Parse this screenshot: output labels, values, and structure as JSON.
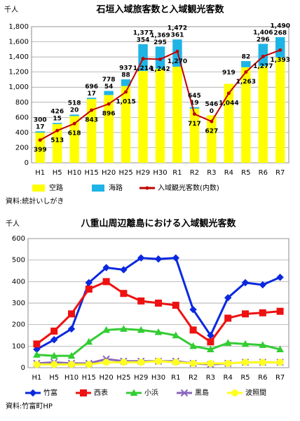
{
  "chart_data": [
    {
      "type": "bar",
      "title": "石垣入域旅客数と入域観光客数",
      "unit": "千人",
      "source": "資料:統計いしがき",
      "categories": [
        "H1",
        "H5",
        "H10",
        "H15",
        "H20",
        "H25",
        "H29",
        "H30",
        "R1",
        "R2",
        "R3",
        "R4",
        "R5",
        "R6",
        "R7"
      ],
      "ylim": [
        0,
        1800
      ],
      "yticks": [
        0,
        200,
        400,
        600,
        800,
        {
          "value": 1000,
          "label": "1,000"
        },
        {
          "value": 1200,
          "label": "1,200"
        },
        {
          "value": 1400,
          "label": "1,400"
        },
        {
          "value": 1600,
          "label": "1,600"
        },
        {
          "value": 1800,
          "label": "1,800"
        }
      ],
      "grid": true,
      "series": [
        {
          "name": "空路",
          "color": "#ffff00",
          "values": [
            399,
            513,
            618,
            843,
            896,
            1015,
            1214,
            1242,
            1270,
            717,
            627,
            1044,
            1263,
            1277,
            1393
          ],
          "value_labels": [
            "399",
            "513",
            "618",
            "843",
            "896",
            "1,015",
            "1,214",
            "1,242",
            "1,270",
            "717",
            "627",
            "1,044",
            "1,263",
            "1,277",
            "1,393"
          ]
        },
        {
          "name": "海路",
          "color": "#1fb4e6",
          "values": [
            17,
            15,
            20,
            17,
            54,
            88,
            354,
            295,
            361,
            19,
            0,
            null,
            82,
            296,
            268
          ]
        },
        {
          "name": "入域観光客数(内数)",
          "color": "#c00000",
          "line": true,
          "values": [
            300,
            426,
            518,
            696,
            778,
            937,
            1377,
            1369,
            1472,
            645,
            546,
            919,
            1200,
            1406,
            1490
          ],
          "value_labels": [
            "300",
            "426",
            "518",
            "696",
            "778",
            "937",
            "1,377",
            "1,369",
            "1,472",
            "645",
            "546",
            "919",
            null,
            "1,406",
            "1,490"
          ]
        }
      ]
    },
    {
      "type": "line",
      "title": "八重山周辺離島における入域観光客数",
      "unit": "千人",
      "source": "資料:竹富町HP",
      "categories": [
        "H1",
        "H5",
        "H10",
        "H15",
        "H20",
        "H25",
        "H29",
        "H30",
        "R1",
        "R2",
        "R3",
        "R4",
        "R5",
        "R6",
        "R7"
      ],
      "ylim": [
        0,
        600
      ],
      "yticks": [
        0,
        100,
        200,
        300,
        400,
        500,
        600
      ],
      "grid": true,
      "series": [
        {
          "name": "竹富",
          "color": "#0a28e0",
          "marker": "diamond",
          "values": [
            85,
            130,
            180,
            395,
            465,
            455,
            510,
            505,
            510,
            270,
            150,
            325,
            395,
            385,
            420
          ]
        },
        {
          "name": "西表",
          "color": "#ee1111",
          "marker": "square",
          "values": [
            110,
            170,
            250,
            365,
            400,
            345,
            310,
            300,
            290,
            175,
            120,
            230,
            250,
            255,
            262
          ]
        },
        {
          "name": "小浜",
          "color": "#33cc33",
          "marker": "triangle",
          "values": [
            60,
            55,
            55,
            120,
            175,
            180,
            175,
            165,
            150,
            100,
            85,
            115,
            110,
            105,
            85
          ]
        },
        {
          "name": "黒島",
          "color": "#8866bb",
          "marker": "x",
          "values": [
            20,
            25,
            20,
            20,
            40,
            30,
            30,
            30,
            30,
            20,
            15,
            20,
            25,
            25,
            25
          ]
        },
        {
          "name": "波照間",
          "color": "#ffff22",
          "marker": "circle",
          "values": [
            15,
            15,
            15,
            15,
            25,
            25,
            25,
            30,
            25,
            20,
            20,
            20,
            25,
            25,
            25
          ]
        }
      ]
    }
  ]
}
